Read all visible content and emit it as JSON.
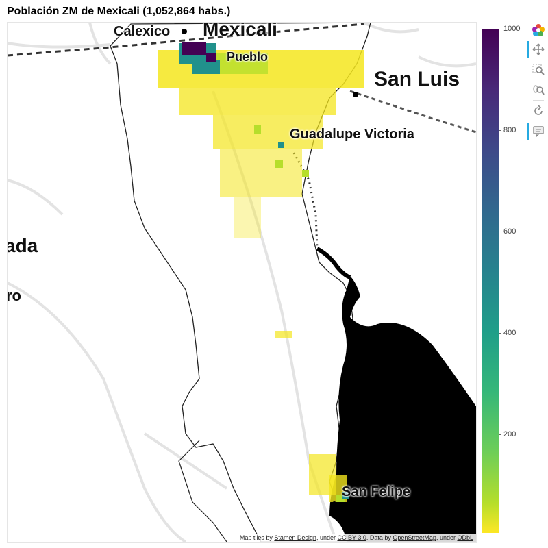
{
  "title": "Población ZM de Mexicali (1,052,864 habs.)",
  "map": {
    "place_labels": [
      {
        "name": "calexico",
        "text": "Calexico"
      },
      {
        "name": "mexicali",
        "text": "Mexicali"
      },
      {
        "name": "pueblo",
        "text": "Pueblo"
      },
      {
        "name": "san-luis",
        "text": "San Luis"
      },
      {
        "name": "guadalupe-victoria",
        "text": "Guadalupe Victoria"
      },
      {
        "name": "ensenada-fragment",
        "text": "ada"
      },
      {
        "name": "ro-fragment",
        "text": "ro"
      },
      {
        "name": "san-felipe",
        "text": "San Felipe"
      }
    ],
    "attribution": {
      "prefix": "Map tiles by",
      "tiles_link": "Stamen Design",
      "under1": ", under",
      "license1": "CC BY 3.0",
      "data_text": ". Data by",
      "data_link": "OpenStreetMap",
      "under2": ", under",
      "license2": "ODbL"
    }
  },
  "colorbar": {
    "min": 0,
    "max": 1000,
    "ticks": [
      "1000",
      "800",
      "600",
      "400",
      "200"
    ],
    "palette": "viridis",
    "colors": {
      "high": "#440154",
      "mid": "#21918c",
      "low": "#fde725"
    }
  },
  "toolbar": {
    "tools": [
      {
        "name": "bokeh-logo-icon",
        "active": false
      },
      {
        "name": "pan-icon",
        "active": true
      },
      {
        "name": "box-zoom-icon",
        "active": false
      },
      {
        "name": "wheel-zoom-icon",
        "active": false
      },
      {
        "name": "reset-icon",
        "active": false
      },
      {
        "name": "hover-icon",
        "active": true
      }
    ]
  }
}
